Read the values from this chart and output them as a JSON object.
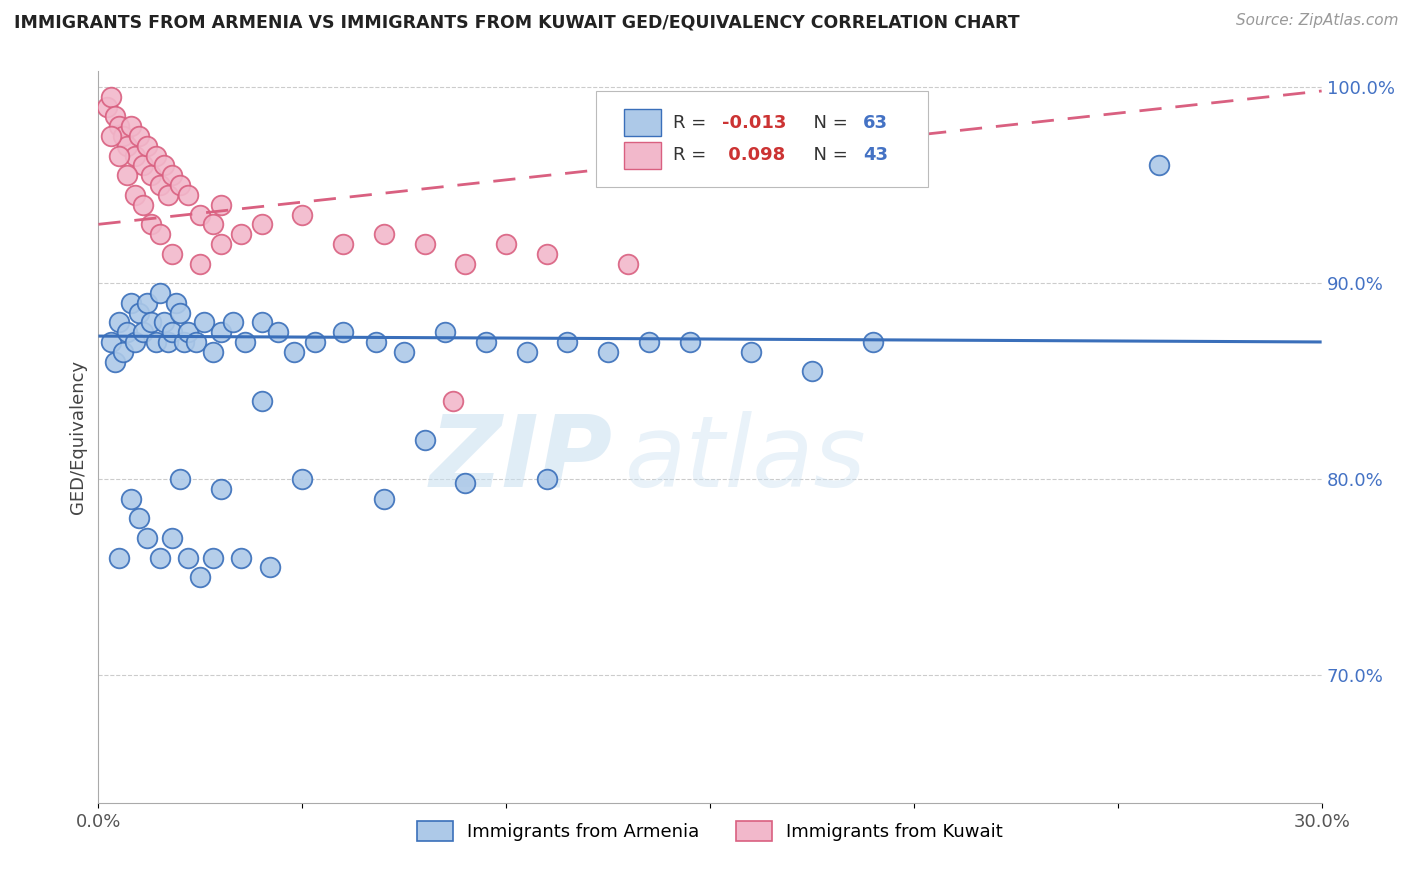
{
  "title": "IMMIGRANTS FROM ARMENIA VS IMMIGRANTS FROM KUWAIT GED/EQUIVALENCY CORRELATION CHART",
  "source": "Source: ZipAtlas.com",
  "xlabel_legend_1": "Immigrants from Armenia",
  "xlabel_legend_2": "Immigrants from Kuwait",
  "ylabel": "GED/Equivalency",
  "R_blue": -0.013,
  "N_blue": 63,
  "R_pink": 0.098,
  "N_pink": 43,
  "xlim": [
    0.0,
    0.3
  ],
  "ylim": [
    0.635,
    1.008
  ],
  "xticks": [
    0.0,
    0.05,
    0.1,
    0.15,
    0.2,
    0.25,
    0.3
  ],
  "xtick_labels": [
    "0.0%",
    "",
    "",
    "",
    "",
    "",
    "30.0%"
  ],
  "ytick_positions": [
    0.7,
    0.8,
    0.9,
    1.0
  ],
  "ytick_labels": [
    "70.0%",
    "80.0%",
    "90.0%",
    "100.0%"
  ],
  "color_blue": "#adc9e8",
  "color_pink": "#f2b8cb",
  "line_blue": "#3a6fba",
  "line_pink": "#d96080",
  "watermark_top": "ZIP",
  "watermark_bot": "atlas",
  "blue_x": [
    0.003,
    0.004,
    0.005,
    0.006,
    0.007,
    0.008,
    0.009,
    0.01,
    0.011,
    0.012,
    0.013,
    0.014,
    0.015,
    0.016,
    0.017,
    0.018,
    0.019,
    0.02,
    0.021,
    0.022,
    0.024,
    0.026,
    0.028,
    0.03,
    0.033,
    0.036,
    0.04,
    0.044,
    0.048,
    0.053,
    0.06,
    0.068,
    0.075,
    0.085,
    0.095,
    0.105,
    0.115,
    0.125,
    0.135,
    0.145,
    0.16,
    0.175,
    0.19,
    0.01,
    0.012,
    0.015,
    0.018,
    0.022,
    0.025,
    0.028,
    0.035,
    0.042,
    0.005,
    0.008,
    0.02,
    0.03,
    0.05,
    0.07,
    0.09,
    0.11,
    0.26,
    0.04,
    0.08
  ],
  "blue_y": [
    0.87,
    0.86,
    0.88,
    0.865,
    0.875,
    0.89,
    0.87,
    0.885,
    0.875,
    0.89,
    0.88,
    0.87,
    0.895,
    0.88,
    0.87,
    0.875,
    0.89,
    0.885,
    0.87,
    0.875,
    0.87,
    0.88,
    0.865,
    0.875,
    0.88,
    0.87,
    0.88,
    0.875,
    0.865,
    0.87,
    0.875,
    0.87,
    0.865,
    0.875,
    0.87,
    0.865,
    0.87,
    0.865,
    0.87,
    0.87,
    0.865,
    0.855,
    0.87,
    0.78,
    0.77,
    0.76,
    0.77,
    0.76,
    0.75,
    0.76,
    0.76,
    0.755,
    0.76,
    0.79,
    0.8,
    0.795,
    0.8,
    0.79,
    0.798,
    0.8,
    0.96,
    0.84,
    0.82
  ],
  "pink_x": [
    0.002,
    0.003,
    0.004,
    0.005,
    0.006,
    0.007,
    0.008,
    0.009,
    0.01,
    0.011,
    0.012,
    0.013,
    0.014,
    0.015,
    0.016,
    0.017,
    0.018,
    0.02,
    0.022,
    0.025,
    0.028,
    0.03,
    0.035,
    0.04,
    0.05,
    0.06,
    0.07,
    0.08,
    0.09,
    0.1,
    0.11,
    0.13,
    0.003,
    0.005,
    0.007,
    0.009,
    0.011,
    0.013,
    0.015,
    0.018,
    0.025,
    0.03,
    0.087
  ],
  "pink_y": [
    0.99,
    0.995,
    0.985,
    0.98,
    0.975,
    0.97,
    0.98,
    0.965,
    0.975,
    0.96,
    0.97,
    0.955,
    0.965,
    0.95,
    0.96,
    0.945,
    0.955,
    0.95,
    0.945,
    0.935,
    0.93,
    0.94,
    0.925,
    0.93,
    0.935,
    0.92,
    0.925,
    0.92,
    0.91,
    0.92,
    0.915,
    0.91,
    0.975,
    0.965,
    0.955,
    0.945,
    0.94,
    0.93,
    0.925,
    0.915,
    0.91,
    0.92,
    0.84
  ],
  "grid_color": "#cccccc",
  "spine_color": "#aaaaaa",
  "ytick_color": "#4472c4",
  "title_color": "#222222",
  "source_color": "#999999"
}
